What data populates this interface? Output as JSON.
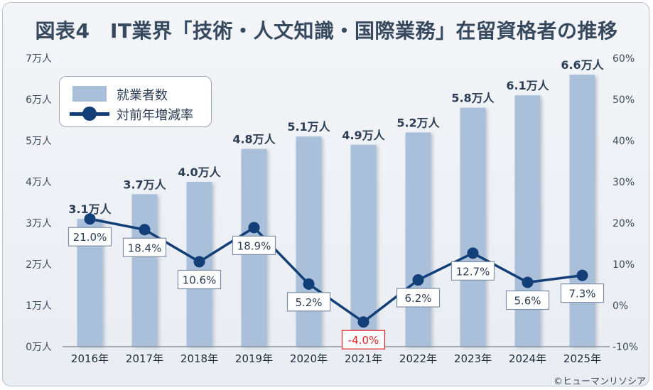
{
  "title": "図表4　IT業界「技術・人文知識・国際業務」在留資格者の推移",
  "credit": "©ヒューマンリソシア",
  "colors": {
    "bar": "#aac0da",
    "line": "#123f78",
    "label_text": "#2c3e55",
    "negative": "#e2232a",
    "axis": "#3c4a5a"
  },
  "legend": {
    "bar_label": "就業者数",
    "line_label": "対前年増減率"
  },
  "chart_data": {
    "type": "bar+line",
    "title": "図表4　IT業界「技術・人文知識・国際業務」在留資格者の推移",
    "categories": [
      "2016年",
      "2017年",
      "2018年",
      "2019年",
      "2020年",
      "2021年",
      "2022年",
      "2023年",
      "2024年",
      "2025年"
    ],
    "series": [
      {
        "name": "就業者数",
        "type": "bar",
        "axis": "left",
        "values": [
          3.1,
          3.7,
          4.0,
          4.8,
          5.1,
          4.9,
          5.2,
          5.8,
          6.1,
          6.6
        ],
        "labels": [
          "3.1万人",
          "3.7万人",
          "4.0万人",
          "4.8万人",
          "5.1万人",
          "4.9万人",
          "5.2万人",
          "5.8万人",
          "6.1万人",
          "6.6万人"
        ]
      },
      {
        "name": "対前年増減率",
        "type": "line",
        "axis": "right",
        "values": [
          21.0,
          18.4,
          10.6,
          18.9,
          5.2,
          -4.0,
          6.2,
          12.7,
          5.6,
          7.3
        ],
        "labels": [
          "21.0%",
          "18.4%",
          "10.6%",
          "18.9%",
          "5.2%",
          "-4.0%",
          "6.2%",
          "12.7%",
          "5.6%",
          "7.3%"
        ]
      }
    ],
    "y_left": {
      "range": [
        0,
        7
      ],
      "ticks": [
        "0万人",
        "1万人",
        "2万人",
        "3万人",
        "4万人",
        "5万人",
        "6万人",
        "7万人"
      ]
    },
    "y_right": {
      "range": [
        -10,
        60
      ],
      "ticks": [
        "-10%",
        "0%",
        "10%",
        "20%",
        "30%",
        "40%",
        "50%",
        "60%"
      ]
    },
    "legend_position": "top-left",
    "grid": false
  }
}
